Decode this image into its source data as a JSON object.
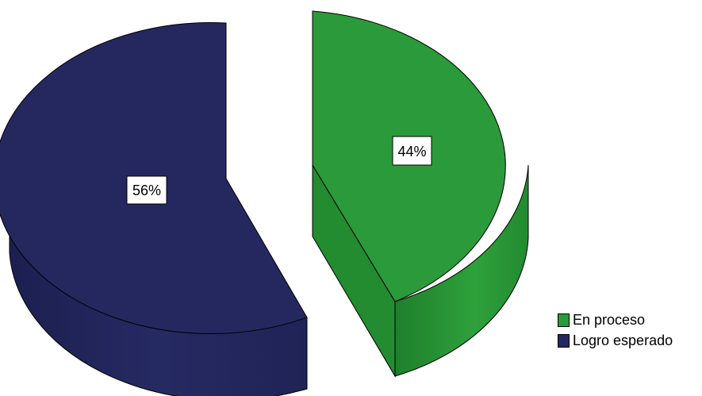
{
  "chart_data": {
    "type": "pie",
    "categories": [
      "En proceso",
      "Logro esperado"
    ],
    "values": [
      44,
      56
    ],
    "labels": [
      "44%",
      "56%"
    ],
    "colors": [
      "#2b9a3a",
      "#25285f"
    ],
    "title": "",
    "legend_position": "right-bottom"
  },
  "legend": {
    "items": [
      {
        "label": "En proceso",
        "color": "#2b9a3a"
      },
      {
        "label": "Logro esperado",
        "color": "#25285f"
      }
    ]
  }
}
